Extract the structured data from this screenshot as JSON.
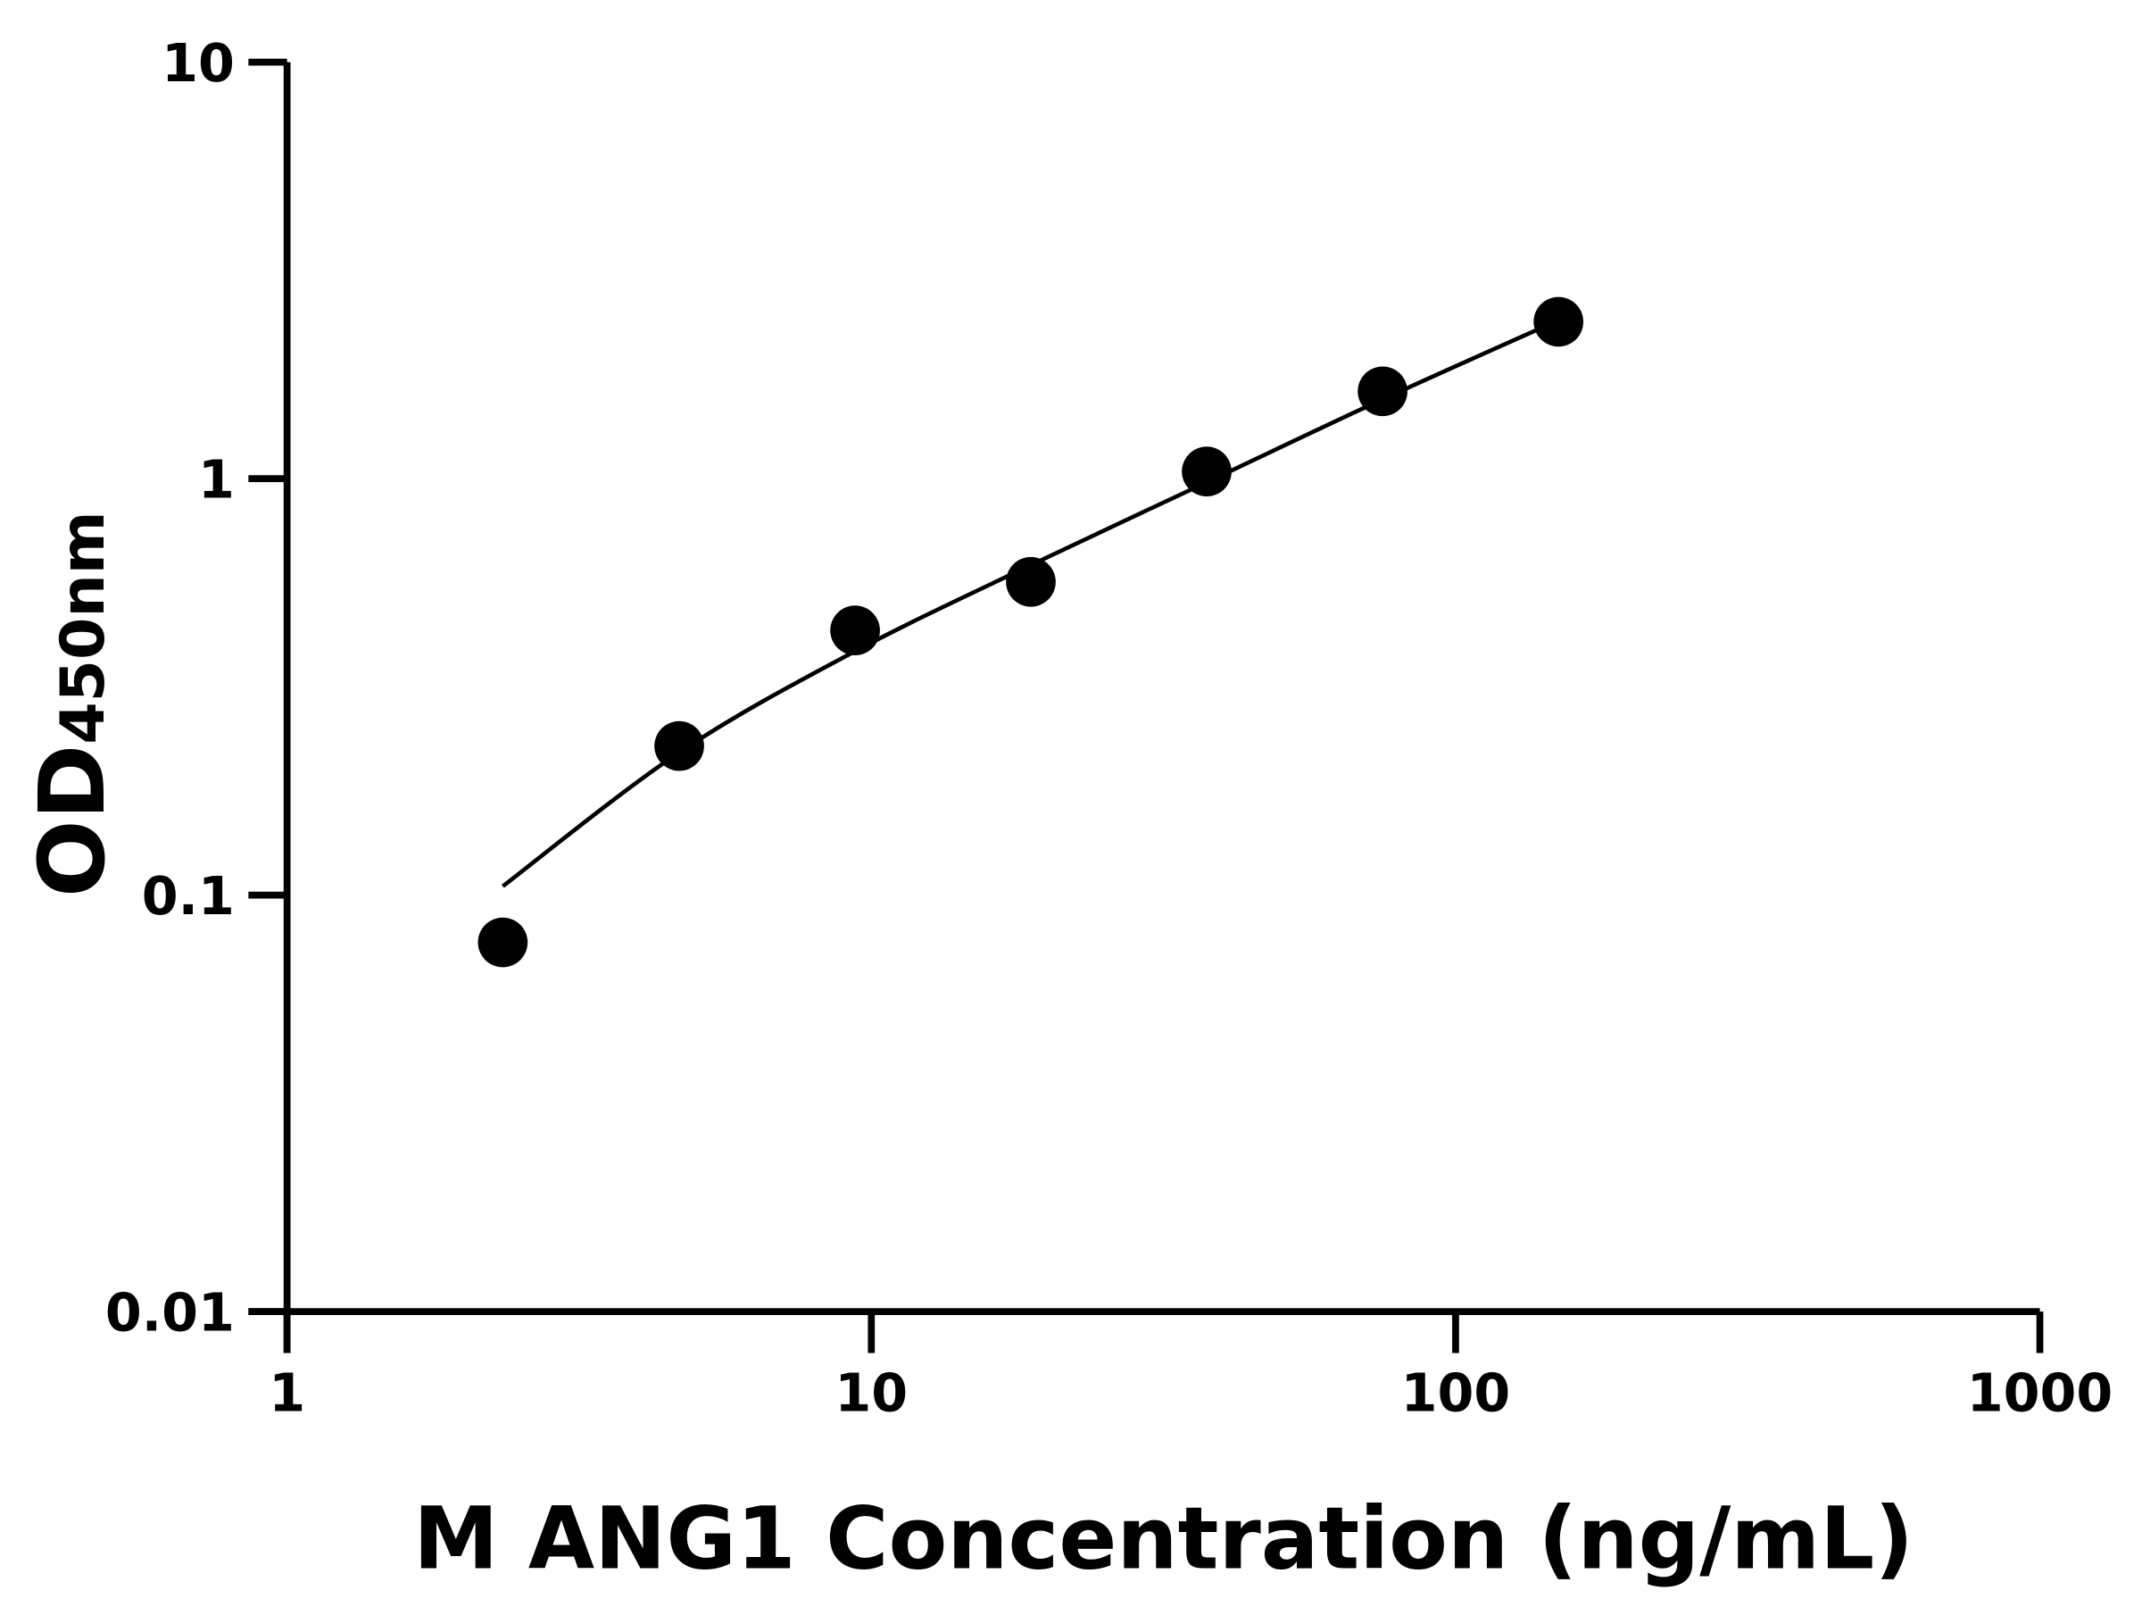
{
  "chart_data": {
    "type": "scatter",
    "title": "",
    "xlabel": "M ANG1 Concentration (ng/mL)",
    "ylabel": "OD",
    "ylabel_subscript": "450nm",
    "xscale": "log",
    "yscale": "log",
    "xlim": [
      1,
      1000
    ],
    "ylim": [
      0.01,
      10
    ],
    "xticks": [
      "1",
      "10",
      "100",
      "1000"
    ],
    "yticks": [
      "0.01",
      "0.1",
      "1",
      "10"
    ],
    "grid": false,
    "colors": {
      "points": "#000000",
      "curve": "#000000",
      "axes": "#000000"
    },
    "series": [
      {
        "points_x": [
          2.34,
          4.69,
          9.38,
          18.75,
          37.5,
          75,
          150
        ],
        "points_y": [
          0.077,
          0.228,
          0.432,
          0.565,
          1.04,
          1.62,
          2.38
        ],
        "fit_curve_x": [
          2.34,
          4.69,
          9.38,
          18.75,
          37.5,
          75,
          150
        ],
        "fit_curve_y": [
          0.105,
          0.22,
          0.385,
          0.62,
          0.98,
          1.55,
          2.4
        ]
      }
    ]
  }
}
